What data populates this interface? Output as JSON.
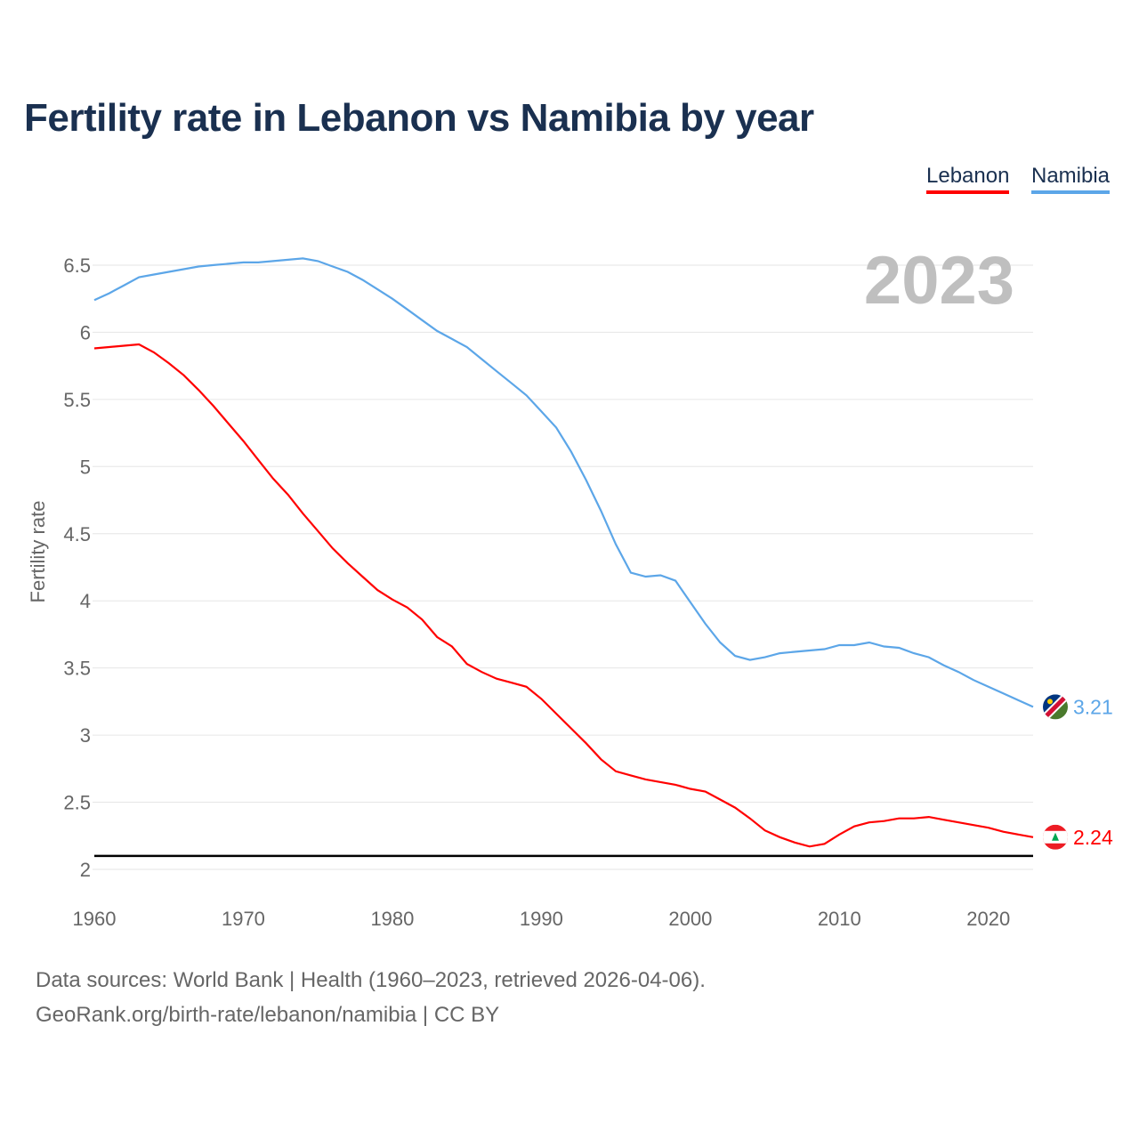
{
  "title": "Fertility rate in Lebanon vs Namibia by year",
  "footer": {
    "line1": "Data sources: World Bank | Health (1960–2023, retrieved 2026-04-06).",
    "line2": "GeoRank.org/birth-rate/lebanon/namibia | CC BY"
  },
  "chart_data": {
    "type": "line",
    "title": "Fertility rate in Lebanon vs Namibia by year",
    "ylabel": "Fertility rate",
    "xlabel": "",
    "ylim": [
      2,
      6.7
    ],
    "xlim": [
      1960,
      2023
    ],
    "yticks": [
      2,
      2.5,
      3,
      3.5,
      4,
      4.5,
      5,
      5.5,
      6,
      6.5
    ],
    "ytick_labels": [
      "2",
      "2.5",
      "3",
      "3.5",
      "4",
      "4.5",
      "5",
      "5.5",
      "6",
      "6.5"
    ],
    "xticks": [
      1960,
      1970,
      1980,
      1990,
      2000,
      2010,
      2020
    ],
    "xtick_labels": [
      "1960",
      "1970",
      "1980",
      "1990",
      "2000",
      "2010",
      "2020"
    ],
    "year_label": "2023",
    "reference_line": 2.1,
    "legend": "top-right",
    "series": [
      {
        "name": "Lebanon",
        "color": "#ff0000",
        "end_label": "2.24",
        "flag": "lebanon-flag",
        "values": [
          5.88,
          5.89,
          5.9,
          5.91,
          5.85,
          5.77,
          5.68,
          5.57,
          5.45,
          5.32,
          5.19,
          5.05,
          4.91,
          4.79,
          4.65,
          4.52,
          4.39,
          4.28,
          4.18,
          4.08,
          4.01,
          3.95,
          3.86,
          3.73,
          3.66,
          3.53,
          3.47,
          3.42,
          3.39,
          3.36,
          3.27,
          3.16,
          3.05,
          2.94,
          2.82,
          2.73,
          2.7,
          2.67,
          2.65,
          2.63,
          2.6,
          2.58,
          2.52,
          2.46,
          2.38,
          2.29,
          2.24,
          2.2,
          2.17,
          2.19,
          2.26,
          2.32,
          2.35,
          2.36,
          2.38,
          2.38,
          2.39,
          2.37,
          2.35,
          2.33,
          2.31,
          2.28,
          2.26,
          2.24
        ]
      },
      {
        "name": "Namibia",
        "color": "#5ca6e8",
        "end_label": "3.21",
        "flag": "namibia-flag",
        "values": [
          6.24,
          6.29,
          6.35,
          6.41,
          6.43,
          6.45,
          6.47,
          6.49,
          6.5,
          6.51,
          6.52,
          6.52,
          6.53,
          6.54,
          6.55,
          6.53,
          6.49,
          6.45,
          6.39,
          6.32,
          6.25,
          6.17,
          6.09,
          6.01,
          5.95,
          5.89,
          5.8,
          5.71,
          5.62,
          5.53,
          5.41,
          5.29,
          5.11,
          4.9,
          4.67,
          4.42,
          4.21,
          4.18,
          4.19,
          4.15,
          3.99,
          3.83,
          3.69,
          3.59,
          3.56,
          3.58,
          3.61,
          3.62,
          3.63,
          3.64,
          3.67,
          3.67,
          3.69,
          3.66,
          3.65,
          3.61,
          3.58,
          3.52,
          3.47,
          3.41,
          3.36,
          3.31,
          3.26,
          3.21
        ]
      }
    ]
  }
}
